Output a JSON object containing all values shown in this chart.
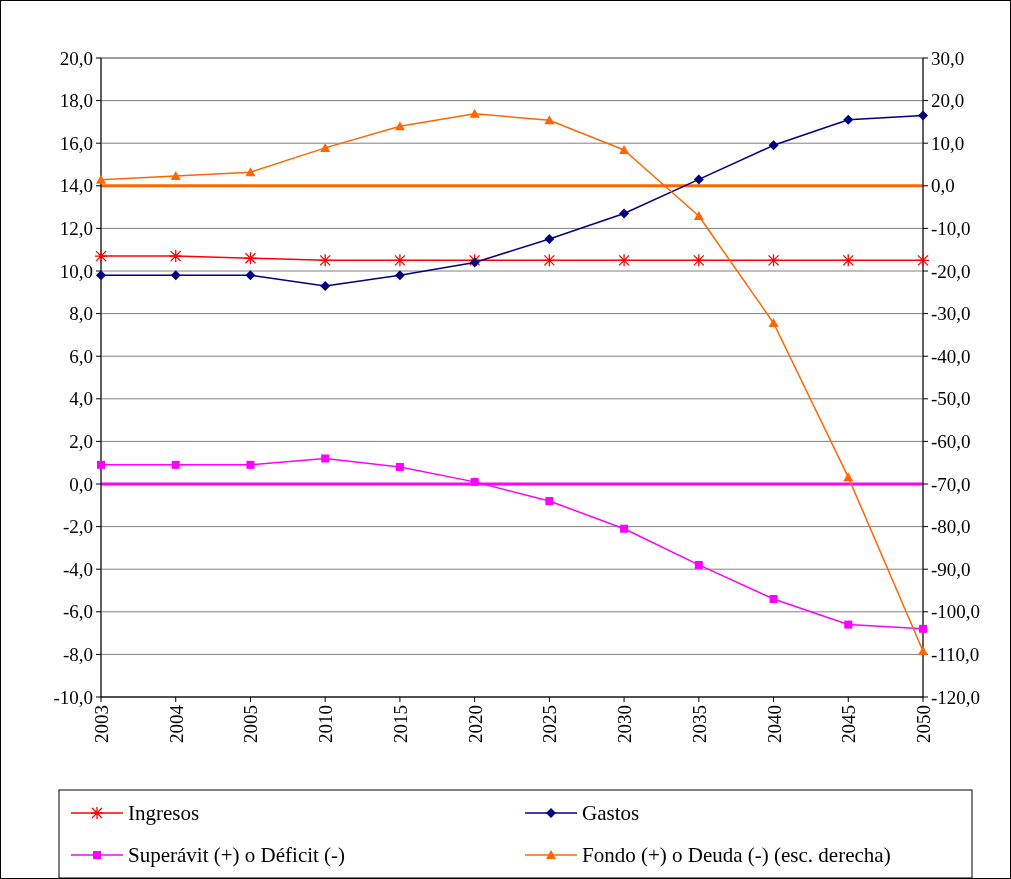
{
  "chart_data": {
    "type": "line",
    "categories": [
      "2003",
      "2004",
      "2005",
      "2010",
      "2015",
      "2020",
      "2025",
      "2030",
      "2035",
      "2040",
      "2045",
      "2050"
    ],
    "series": [
      {
        "name": "Ingresos",
        "color": "#ff0000",
        "marker": "cross",
        "values": [
          10.7,
          10.7,
          10.6,
          10.5,
          10.5,
          10.5,
          10.5,
          10.5,
          10.5,
          10.5,
          10.5,
          10.5
        ]
      },
      {
        "name": "Gastos",
        "color": "#000080",
        "marker": "diamond",
        "values": [
          9.8,
          9.8,
          9.8,
          9.3,
          9.8,
          10.4,
          11.5,
          12.7,
          14.3,
          15.9,
          17.1,
          17.3
        ]
      },
      {
        "name": "Superávit (+) o Déficit (-)",
        "color": "#ff00ff",
        "marker": "square",
        "values": [
          0.9,
          0.9,
          0.9,
          1.2,
          0.8,
          0.1,
          -0.8,
          -2.1,
          -3.8,
          -5.4,
          -6.6,
          -6.8
        ]
      },
      {
        "name": "Fondo (+) o Deuda (-) (esc. derecha)",
        "color": "#ff6600",
        "marker": "triangle",
        "axis": "y2",
        "values": [
          1.4,
          2.3,
          3.2,
          8.9,
          14.0,
          16.9,
          15.4,
          8.4,
          -7.1,
          -32.2,
          -68.4,
          -109.2
        ]
      }
    ],
    "ylim": [
      -10,
      20
    ],
    "yticks": [
      {
        "value": -10,
        "label": "-10,0"
      },
      {
        "value": -8,
        "label": "-8,0"
      },
      {
        "value": -6,
        "label": "-6,0"
      },
      {
        "value": -4,
        "label": "-4,0"
      },
      {
        "value": -2,
        "label": "-2,0"
      },
      {
        "value": 0,
        "label": "0,0"
      },
      {
        "value": 2,
        "label": "2,0"
      },
      {
        "value": 4,
        "label": "4,0"
      },
      {
        "value": 6,
        "label": "6,0"
      },
      {
        "value": 8,
        "label": "8,0"
      },
      {
        "value": 10,
        "label": "10,0"
      },
      {
        "value": 12,
        "label": "12,0"
      },
      {
        "value": 14,
        "label": "14,0"
      },
      {
        "value": 16,
        "label": "16,0"
      },
      {
        "value": 18,
        "label": "18,0"
      },
      {
        "value": 20,
        "label": "20,0"
      }
    ],
    "y2lim": [
      -120,
      30
    ],
    "y2ticks": [
      {
        "value": -120,
        "label": "-120,0"
      },
      {
        "value": -110,
        "label": "-110,0"
      },
      {
        "value": -100,
        "label": "-100,0"
      },
      {
        "value": -90,
        "label": "-90,0"
      },
      {
        "value": -80,
        "label": "-80,0"
      },
      {
        "value": -70,
        "label": "-70,0"
      },
      {
        "value": -60,
        "label": "-60,0"
      },
      {
        "value": -50,
        "label": "-50,0"
      },
      {
        "value": -40,
        "label": "-40,0"
      },
      {
        "value": -30,
        "label": "-30,0"
      },
      {
        "value": -20,
        "label": "-20,0"
      },
      {
        "value": -10,
        "label": "-10,0"
      },
      {
        "value": 0,
        "label": "0,0"
      },
      {
        "value": 10,
        "label": "10,0"
      },
      {
        "value": 20,
        "label": "20,0"
      },
      {
        "value": 30,
        "label": "30,0"
      }
    ],
    "ref_lines": [
      {
        "axis": "y",
        "value": 0,
        "color": "#ff00ff"
      },
      {
        "axis": "y2",
        "value": 0,
        "color": "#ff6600"
      }
    ],
    "grid": "y",
    "legend": "bottom"
  }
}
